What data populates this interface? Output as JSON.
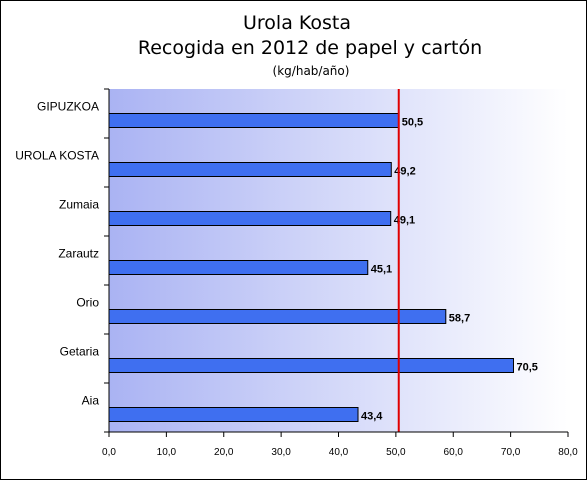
{
  "chart_data": {
    "type": "bar",
    "orientation": "horizontal",
    "title": "Urola Kosta",
    "subtitle": "Recogida en 2012 de papel y cartón",
    "units": "(kg/hab/año)",
    "categories": [
      "GIPUZKOA",
      "UROLA KOSTA",
      "Zumaia",
      "Zarautz",
      "Orio",
      "Getaria",
      "Aia"
    ],
    "values": [
      50.5,
      49.2,
      49.1,
      45.1,
      58.7,
      70.5,
      43.4
    ],
    "value_labels": [
      "50,5",
      "49,2",
      "49,1",
      "45,1",
      "58,7",
      "70,5",
      "43,4"
    ],
    "xlim": [
      0,
      80
    ],
    "x_ticks": [
      "0,0",
      "10,0",
      "20,0",
      "30,0",
      "40,0",
      "50,0",
      "60,0",
      "70,0",
      "80,0"
    ],
    "reference_line": 50.5,
    "grid": false,
    "legend": "none",
    "colors": {
      "bar": "#3f6ff0",
      "bar_border": "#000000",
      "reference_line": "#e00000",
      "plot_bg_left": "#aab3f3",
      "plot_bg_right": "#ffffff"
    }
  }
}
